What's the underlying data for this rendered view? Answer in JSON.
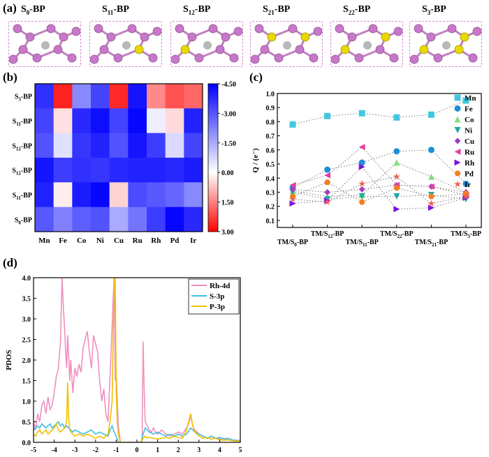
{
  "panel_a": {
    "label": "(a)",
    "structures": [
      {
        "title": "S0-BP",
        "base": "S",
        "sub": "0",
        "suffix": "-BP",
        "sulfur_count": 0
      },
      {
        "title": "S11-BP",
        "base": "S",
        "sub": "11",
        "suffix": "-BP",
        "sulfur_count": 1
      },
      {
        "title": "S12-BP",
        "base": "S",
        "sub": "12",
        "suffix": "-BP",
        "sulfur_count": 1
      },
      {
        "title": "S21-BP",
        "base": "S",
        "sub": "21",
        "suffix": "-BP",
        "sulfur_count": 2
      },
      {
        "title": "S22-BP",
        "base": "S",
        "sub": "22",
        "suffix": "-BP",
        "sulfur_count": 2
      },
      {
        "title": "S3-BP",
        "base": "S",
        "sub": "3",
        "suffix": "-BP",
        "sulfur_count": 3
      }
    ],
    "colors": {
      "phosphorus": "#c878c8",
      "sulfur": "#e8d800",
      "metal": "#b8b8b8",
      "border": "#d28ad2"
    }
  },
  "chart_data": [
    {
      "panel": "(b)",
      "type": "heatmap",
      "columns": [
        "Mn",
        "Fe",
        "Co",
        "Ni",
        "Cu",
        "Ru",
        "Rh",
        "Pd",
        "Ir"
      ],
      "rows": [
        "S3-BP",
        "S11-BP",
        "S12-BP",
        "S12-BP",
        "S11-BP",
        "S0-BP"
      ],
      "row_labels": [
        {
          "base": "S",
          "sub": "3",
          "suffix": "-BP"
        },
        {
          "base": "S",
          "sub": "11",
          "suffix": "-BP"
        },
        {
          "base": "S",
          "sub": "12",
          "suffix": "-BP"
        },
        {
          "base": "S",
          "sub": "12",
          "suffix": "-BP"
        },
        {
          "base": "S",
          "sub": "11",
          "suffix": "-BP"
        },
        {
          "base": "S",
          "sub": "0",
          "suffix": "-BP"
        }
      ],
      "values": [
        [
          -3.8,
          2.5,
          -2.5,
          -3.5,
          2.4,
          -4.2,
          1.0,
          1.8,
          1.5
        ],
        [
          -3.5,
          -0.3,
          -3.9,
          -4.3,
          -3.5,
          -4.4,
          -1.0,
          -0.2,
          -4.0
        ],
        [
          -3.3,
          -1.2,
          -3.7,
          -4.0,
          -3.3,
          -4.2,
          -3.6,
          -1.3,
          -3.5
        ],
        [
          -4.2,
          -3.6,
          -3.8,
          -3.7,
          -3.9,
          -4.0,
          -4.0,
          -3.9,
          -4.1
        ],
        [
          -4.0,
          -0.5,
          -4.1,
          -4.4,
          -0.1,
          -3.4,
          -3.2,
          -3.0,
          -2.5
        ],
        [
          -3.2,
          -2.6,
          -3.1,
          -3.3,
          -2.0,
          -2.8,
          -3.6,
          -4.4,
          -3.9
        ]
      ],
      "colorbar_ticks": [
        "-4.50",
        "-3.00",
        "-1.50",
        "0.00",
        "1.50",
        "3.00"
      ],
      "colorbar_values": [
        -4.5,
        -3.0,
        -1.5,
        0.0,
        1.5,
        3.0
      ],
      "vmin": -4.5,
      "vmax": 3.0,
      "cmap": {
        "low": "#0000ff",
        "mid": "#ffffff",
        "high": "#ff0000"
      }
    },
    {
      "panel": "(c)",
      "type": "scatter",
      "ylabel": "Q / (e⁻)",
      "ylim": [
        0.05,
        1.0
      ],
      "yticks": [
        0.1,
        0.2,
        0.3,
        0.4,
        0.5,
        0.6,
        0.7,
        0.8,
        0.9,
        1.0
      ],
      "ytick_labels": [
        "0.1",
        "0.2",
        "0.3",
        "0.4",
        "0.5",
        "0.6",
        "0.7",
        "0.8",
        "0.9",
        "1.0"
      ],
      "categories": [
        "TM/S0-BP",
        "TM/S12-BP",
        "TM/S11-BP",
        "TM/S22-BP",
        "TM/S21-BP",
        "TM/S3-BP"
      ],
      "category_labels": [
        {
          "base": "TM/S",
          "sub": "0",
          "suffix": "-BP"
        },
        {
          "base": "TM/S",
          "sub": "12",
          "suffix": "-BP"
        },
        {
          "base": "TM/S",
          "sub": "11",
          "suffix": "-BP"
        },
        {
          "base": "TM/S",
          "sub": "22",
          "suffix": "-BP"
        },
        {
          "base": "TM/S",
          "sub": "21",
          "suffix": "-BP"
        },
        {
          "base": "TM/S",
          "sub": "3",
          "suffix": "-BP"
        }
      ],
      "series": [
        {
          "name": "Mn",
          "color": "#40c8e0",
          "marker": "square",
          "values": [
            0.78,
            0.84,
            0.86,
            0.83,
            0.85,
            0.95
          ]
        },
        {
          "name": "Fe",
          "color": "#1e8fd8",
          "marker": "circle",
          "values": [
            0.33,
            0.46,
            0.51,
            0.59,
            0.6,
            0.36
          ]
        },
        {
          "name": "Co",
          "color": "#80e080",
          "marker": "triangle-up",
          "values": [
            0.31,
            0.27,
            0.28,
            0.51,
            0.41,
            0.3
          ]
        },
        {
          "name": "Ni",
          "color": "#20a8a8",
          "marker": "triangle-down",
          "values": [
            0.3,
            0.25,
            0.27,
            0.27,
            0.28,
            0.25
          ]
        },
        {
          "name": "Cu",
          "color": "#a040c0",
          "marker": "diamond",
          "values": [
            0.32,
            0.3,
            0.32,
            0.35,
            0.34,
            0.3
          ]
        },
        {
          "name": "Ru",
          "color": "#e040a0",
          "marker": "triangle-left",
          "values": [
            0.35,
            0.42,
            0.62,
            0.35,
            0.34,
            0.28
          ]
        },
        {
          "name": "Rh",
          "color": "#8010e0",
          "marker": "triangle-right",
          "values": [
            0.22,
            0.24,
            0.48,
            0.18,
            0.19,
            0.26
          ]
        },
        {
          "name": "Pd",
          "color": "#f08020",
          "marker": "hexagon",
          "values": [
            0.27,
            0.37,
            0.23,
            0.33,
            0.27,
            0.29
          ]
        },
        {
          "name": "Ir",
          "color": "#f06050",
          "marker": "star",
          "values": [
            0.25,
            0.23,
            0.36,
            0.41,
            0.22,
            0.27
          ]
        }
      ]
    },
    {
      "panel": "(d)",
      "type": "line",
      "ylabel": "PDOS",
      "xlim": [
        -5,
        5
      ],
      "ylim": [
        0,
        4.0
      ],
      "xticks": [
        -5,
        -4,
        -3,
        -2,
        -1,
        0,
        1,
        2,
        3,
        4,
        5
      ],
      "xtick_labels": [
        "-5",
        "-4",
        "-3",
        "-2",
        "-1",
        "0",
        "1",
        "2",
        "3",
        "4",
        "5"
      ],
      "yticks": [
        0,
        0.5,
        1.0,
        1.5,
        2.0,
        2.5,
        3.0,
        3.5,
        4.0
      ],
      "ytick_labels": [
        "0.0",
        "0.5",
        "1.0",
        "1.5",
        "2.0",
        "2.5",
        "3.0",
        "3.5",
        "4.0"
      ],
      "series": [
        {
          "name": "Rh-4d",
          "color": "#f090c0",
          "x": [
            -5,
            -4.9,
            -4.8,
            -4.7,
            -4.6,
            -4.5,
            -4.4,
            -4.3,
            -4.2,
            -4.1,
            -4.0,
            -3.9,
            -3.8,
            -3.7,
            -3.62,
            -3.55,
            -3.5,
            -3.45,
            -3.4,
            -3.35,
            -3.3,
            -3.25,
            -3.2,
            -3.15,
            -3.1,
            -3.0,
            -2.9,
            -2.8,
            -2.7,
            -2.6,
            -2.5,
            -2.4,
            -2.3,
            -2.2,
            -2.1,
            -2.0,
            -1.9,
            -1.8,
            -1.7,
            -1.6,
            -1.5,
            -1.4,
            -1.3,
            -1.2,
            -1.15,
            -1.1,
            -1.05,
            -1.0,
            -0.95,
            -0.9,
            -0.8,
            -0.7,
            -0.6,
            -0.5,
            -0.4,
            -0.3,
            -0.2,
            -0.1,
            0.0,
            0.1,
            0.2,
            0.25,
            0.3,
            0.35,
            0.4,
            0.5,
            0.6,
            0.7,
            0.8,
            0.9,
            1.0,
            1.2,
            1.4,
            1.6,
            1.8,
            2.0,
            2.2,
            2.4,
            2.5,
            2.6,
            2.7,
            2.8,
            2.9,
            3.0,
            3.2,
            3.4,
            3.6,
            3.8,
            4.0,
            4.2,
            4.4,
            4.6,
            4.8,
            5.0
          ],
          "y": [
            0.5,
            0.3,
            0.7,
            0.5,
            0.9,
            1.0,
            0.7,
            1.1,
            0.8,
            0.9,
            1.2,
            1.6,
            1.8,
            2.4,
            4.0,
            3.2,
            2.8,
            2.2,
            1.8,
            2.6,
            2.1,
            1.5,
            2.0,
            1.6,
            1.2,
            1.8,
            1.6,
            1.9,
            1.7,
            2.3,
            2.5,
            2.7,
            2.2,
            1.8,
            2.6,
            2.4,
            2.2,
            1.5,
            1.0,
            1.3,
            0.7,
            0.5,
            1.6,
            2.8,
            3.5,
            4.0,
            1.5,
            1.6,
            1.0,
            0.4,
            0.0,
            0.0,
            0.0,
            0.0,
            0.0,
            0.0,
            0.0,
            0.0,
            0.0,
            0.0,
            0.0,
            0.0,
            2.45,
            1.3,
            0.5,
            0.4,
            0.3,
            0.25,
            0.35,
            0.25,
            0.2,
            0.3,
            0.2,
            0.15,
            0.2,
            0.25,
            0.2,
            0.35,
            0.45,
            0.65,
            0.4,
            0.3,
            0.25,
            0.2,
            0.15,
            0.1,
            0.15,
            0.1,
            0.08,
            0.1,
            0.06,
            0.05,
            0.05,
            0.04
          ]
        },
        {
          "name": "S-3p",
          "color": "#40c0e0",
          "x": [
            -5,
            -4.9,
            -4.8,
            -4.7,
            -4.6,
            -4.5,
            -4.4,
            -4.3,
            -4.2,
            -4.1,
            -4.0,
            -3.9,
            -3.8,
            -3.7,
            -3.6,
            -3.5,
            -3.4,
            -3.3,
            -3.2,
            -3.1,
            -3.0,
            -2.8,
            -2.6,
            -2.4,
            -2.2,
            -2.0,
            -1.8,
            -1.6,
            -1.4,
            -1.3,
            -1.2,
            -1.1,
            -1.0,
            -0.9,
            -0.8,
            -0.6,
            -0.4,
            -0.2,
            0.0,
            0.2,
            0.3,
            0.4,
            0.5,
            0.6,
            0.8,
            1.0,
            1.2,
            1.4,
            1.6,
            1.8,
            2.0,
            2.2,
            2.4,
            2.6,
            2.8,
            3.0,
            3.2,
            3.4,
            3.6,
            3.8,
            4.0,
            4.2,
            4.4,
            4.6,
            4.8,
            5.0
          ],
          "y": [
            0.3,
            0.35,
            0.4,
            0.35,
            0.45,
            0.4,
            0.35,
            0.4,
            0.45,
            0.35,
            0.4,
            0.45,
            0.5,
            0.4,
            0.45,
            0.35,
            0.4,
            0.35,
            0.3,
            0.25,
            0.3,
            0.25,
            0.2,
            0.25,
            0.3,
            0.2,
            0.25,
            0.2,
            0.15,
            0.3,
            0.4,
            0.25,
            0.15,
            0.0,
            0.0,
            0.0,
            0.0,
            0.0,
            0.0,
            0.0,
            0.2,
            0.35,
            0.3,
            0.25,
            0.2,
            0.25,
            0.2,
            0.15,
            0.2,
            0.15,
            0.2,
            0.15,
            0.2,
            0.35,
            0.25,
            0.2,
            0.15,
            0.1,
            0.15,
            0.1,
            0.12,
            0.08,
            0.1,
            0.06,
            0.05,
            0.04
          ]
        },
        {
          "name": "P-3p",
          "color": "#f0c000",
          "x": [
            -5,
            -4.9,
            -4.8,
            -4.7,
            -4.6,
            -4.5,
            -4.4,
            -4.3,
            -4.2,
            -4.1,
            -4.0,
            -3.9,
            -3.8,
            -3.7,
            -3.6,
            -3.5,
            -3.4,
            -3.35,
            -3.3,
            -3.25,
            -3.2,
            -3.1,
            -3.0,
            -2.8,
            -2.6,
            -2.4,
            -2.2,
            -2.0,
            -1.8,
            -1.6,
            -1.4,
            -1.3,
            -1.2,
            -1.15,
            -1.1,
            -1.05,
            -1.0,
            -0.95,
            -0.9,
            -0.8,
            -0.6,
            -0.4,
            -0.2,
            0.0,
            0.2,
            0.3,
            0.4,
            0.5,
            0.6,
            0.8,
            1.0,
            1.2,
            1.4,
            1.6,
            1.8,
            2.0,
            2.2,
            2.4,
            2.5,
            2.6,
            2.7,
            2.8,
            3.0,
            3.2,
            3.4,
            3.6,
            3.8,
            4.0,
            4.2,
            4.4,
            4.6,
            4.8,
            5.0
          ],
          "y": [
            0.2,
            0.15,
            0.25,
            0.3,
            0.2,
            0.25,
            0.3,
            0.2,
            0.25,
            0.3,
            0.35,
            0.45,
            0.3,
            0.25,
            0.3,
            0.35,
            0.5,
            1.45,
            0.6,
            0.3,
            0.25,
            0.2,
            0.15,
            0.2,
            0.15,
            0.2,
            0.15,
            0.1,
            0.15,
            0.1,
            0.2,
            0.5,
            1.0,
            2.5,
            4.0,
            4.0,
            1.2,
            0.5,
            0.2,
            0.0,
            0.0,
            0.0,
            0.0,
            0.0,
            0.0,
            0.1,
            0.15,
            0.1,
            0.12,
            0.1,
            0.08,
            0.1,
            0.12,
            0.1,
            0.15,
            0.12,
            0.1,
            0.3,
            0.5,
            0.7,
            0.4,
            0.25,
            0.15,
            0.1,
            0.12,
            0.08,
            0.1,
            0.06,
            0.05,
            0.06,
            0.04,
            0.03,
            0.03
          ]
        }
      ]
    }
  ]
}
